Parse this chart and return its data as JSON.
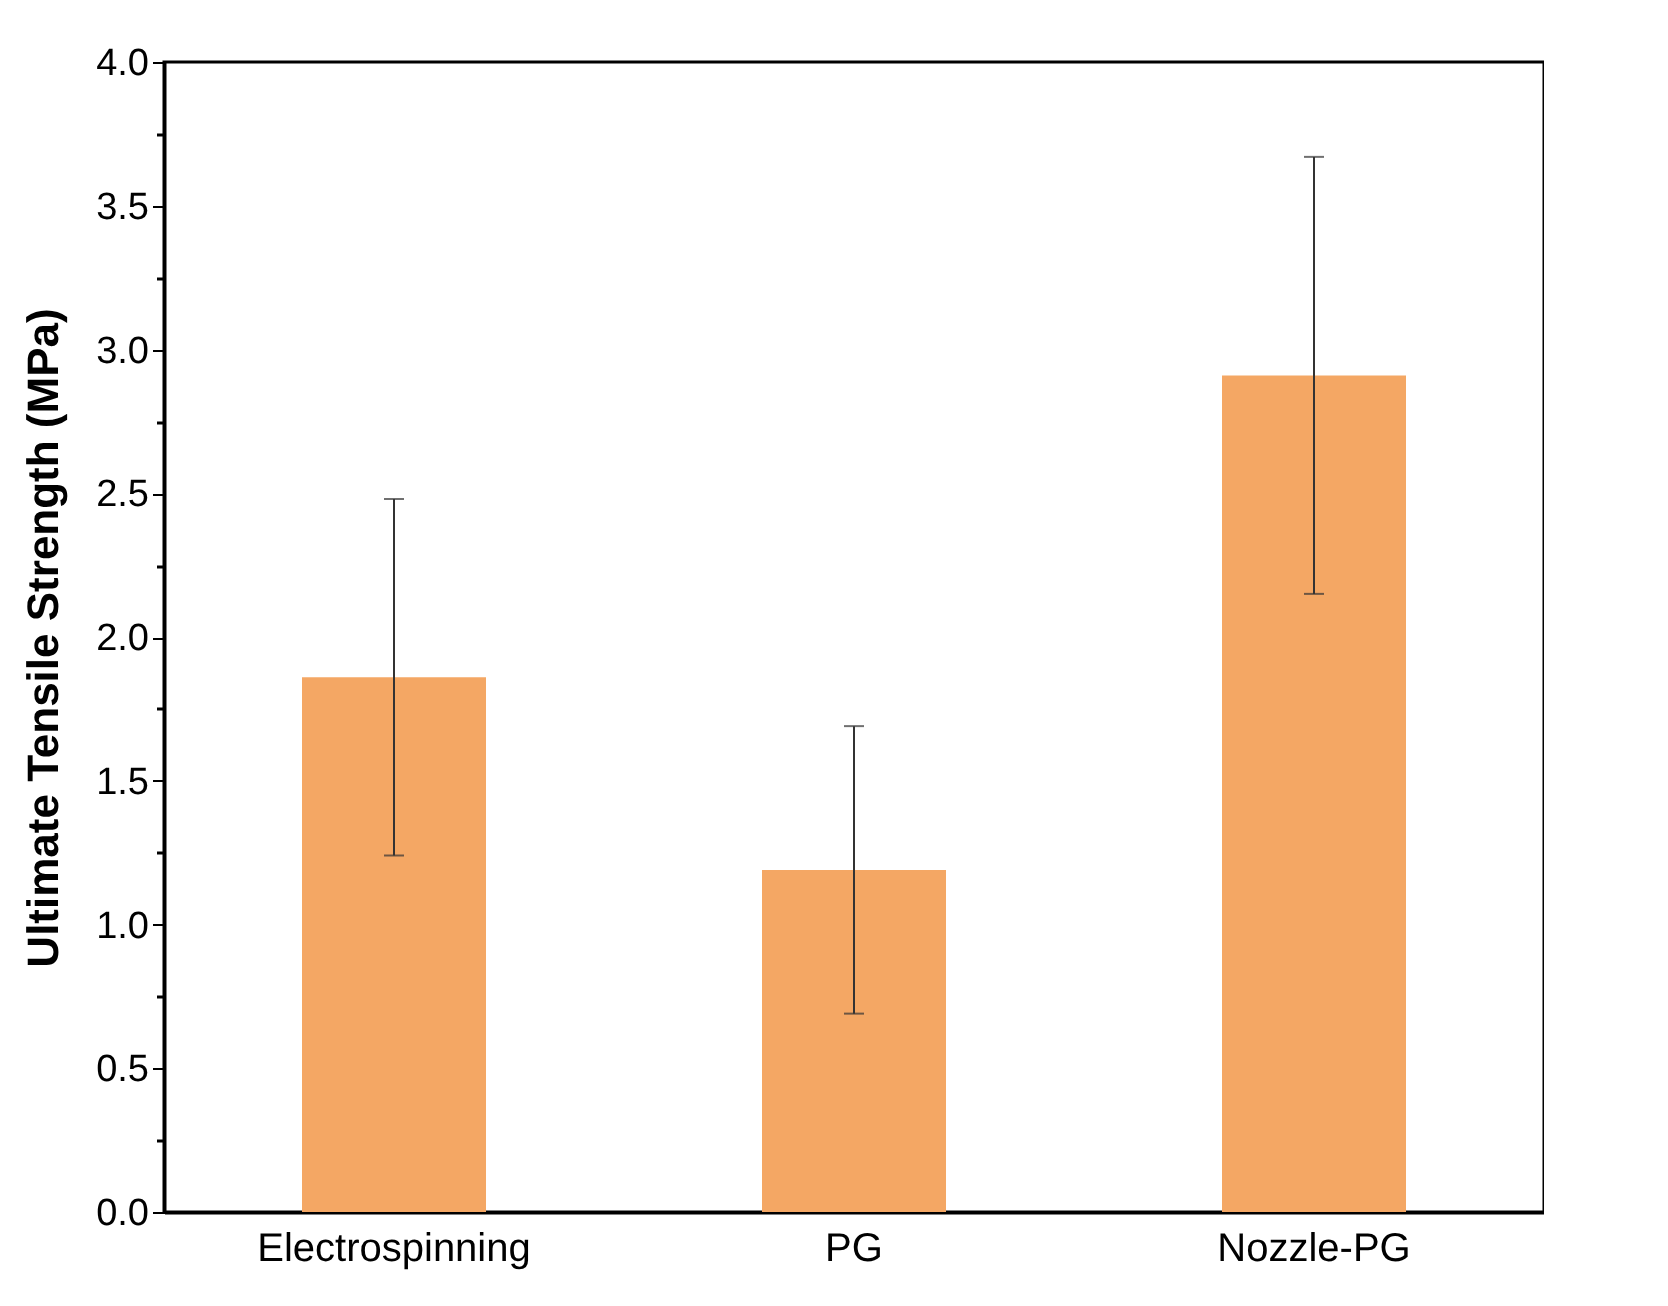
{
  "chart_data": {
    "type": "bar",
    "ylabel": "Ultimate Tensile Strength (MPa)",
    "categories": [
      "Electrospinning",
      "PG",
      "Nozzle-PG"
    ],
    "values": [
      1.86,
      1.19,
      2.91
    ],
    "errors": [
      0.62,
      0.5,
      0.76
    ],
    "color": "#f4a764",
    "ylim": [
      0,
      4.0
    ],
    "yticks": [
      {
        "value": 0,
        "label": "0.0"
      },
      {
        "value": 0.25,
        "label": null
      },
      {
        "value": 0.5,
        "label": "0.5"
      },
      {
        "value": 0.75,
        "label": null
      },
      {
        "value": 1,
        "label": "1.0"
      },
      {
        "value": 1.25,
        "label": null
      },
      {
        "value": 1.5,
        "label": "1.5"
      },
      {
        "value": 1.75,
        "label": null
      },
      {
        "value": 2,
        "label": "2.0"
      },
      {
        "value": 2.25,
        "label": null
      },
      {
        "value": 2.5,
        "label": "2.5"
      },
      {
        "value": 2.75,
        "label": null
      },
      {
        "value": 3,
        "label": "3.0"
      },
      {
        "value": 3.25,
        "label": null
      },
      {
        "value": 3.5,
        "label": "3.5"
      },
      {
        "value": 3.75,
        "label": null
      },
      {
        "value": 4,
        "label": "4.0"
      }
    ],
    "grid": false
  }
}
